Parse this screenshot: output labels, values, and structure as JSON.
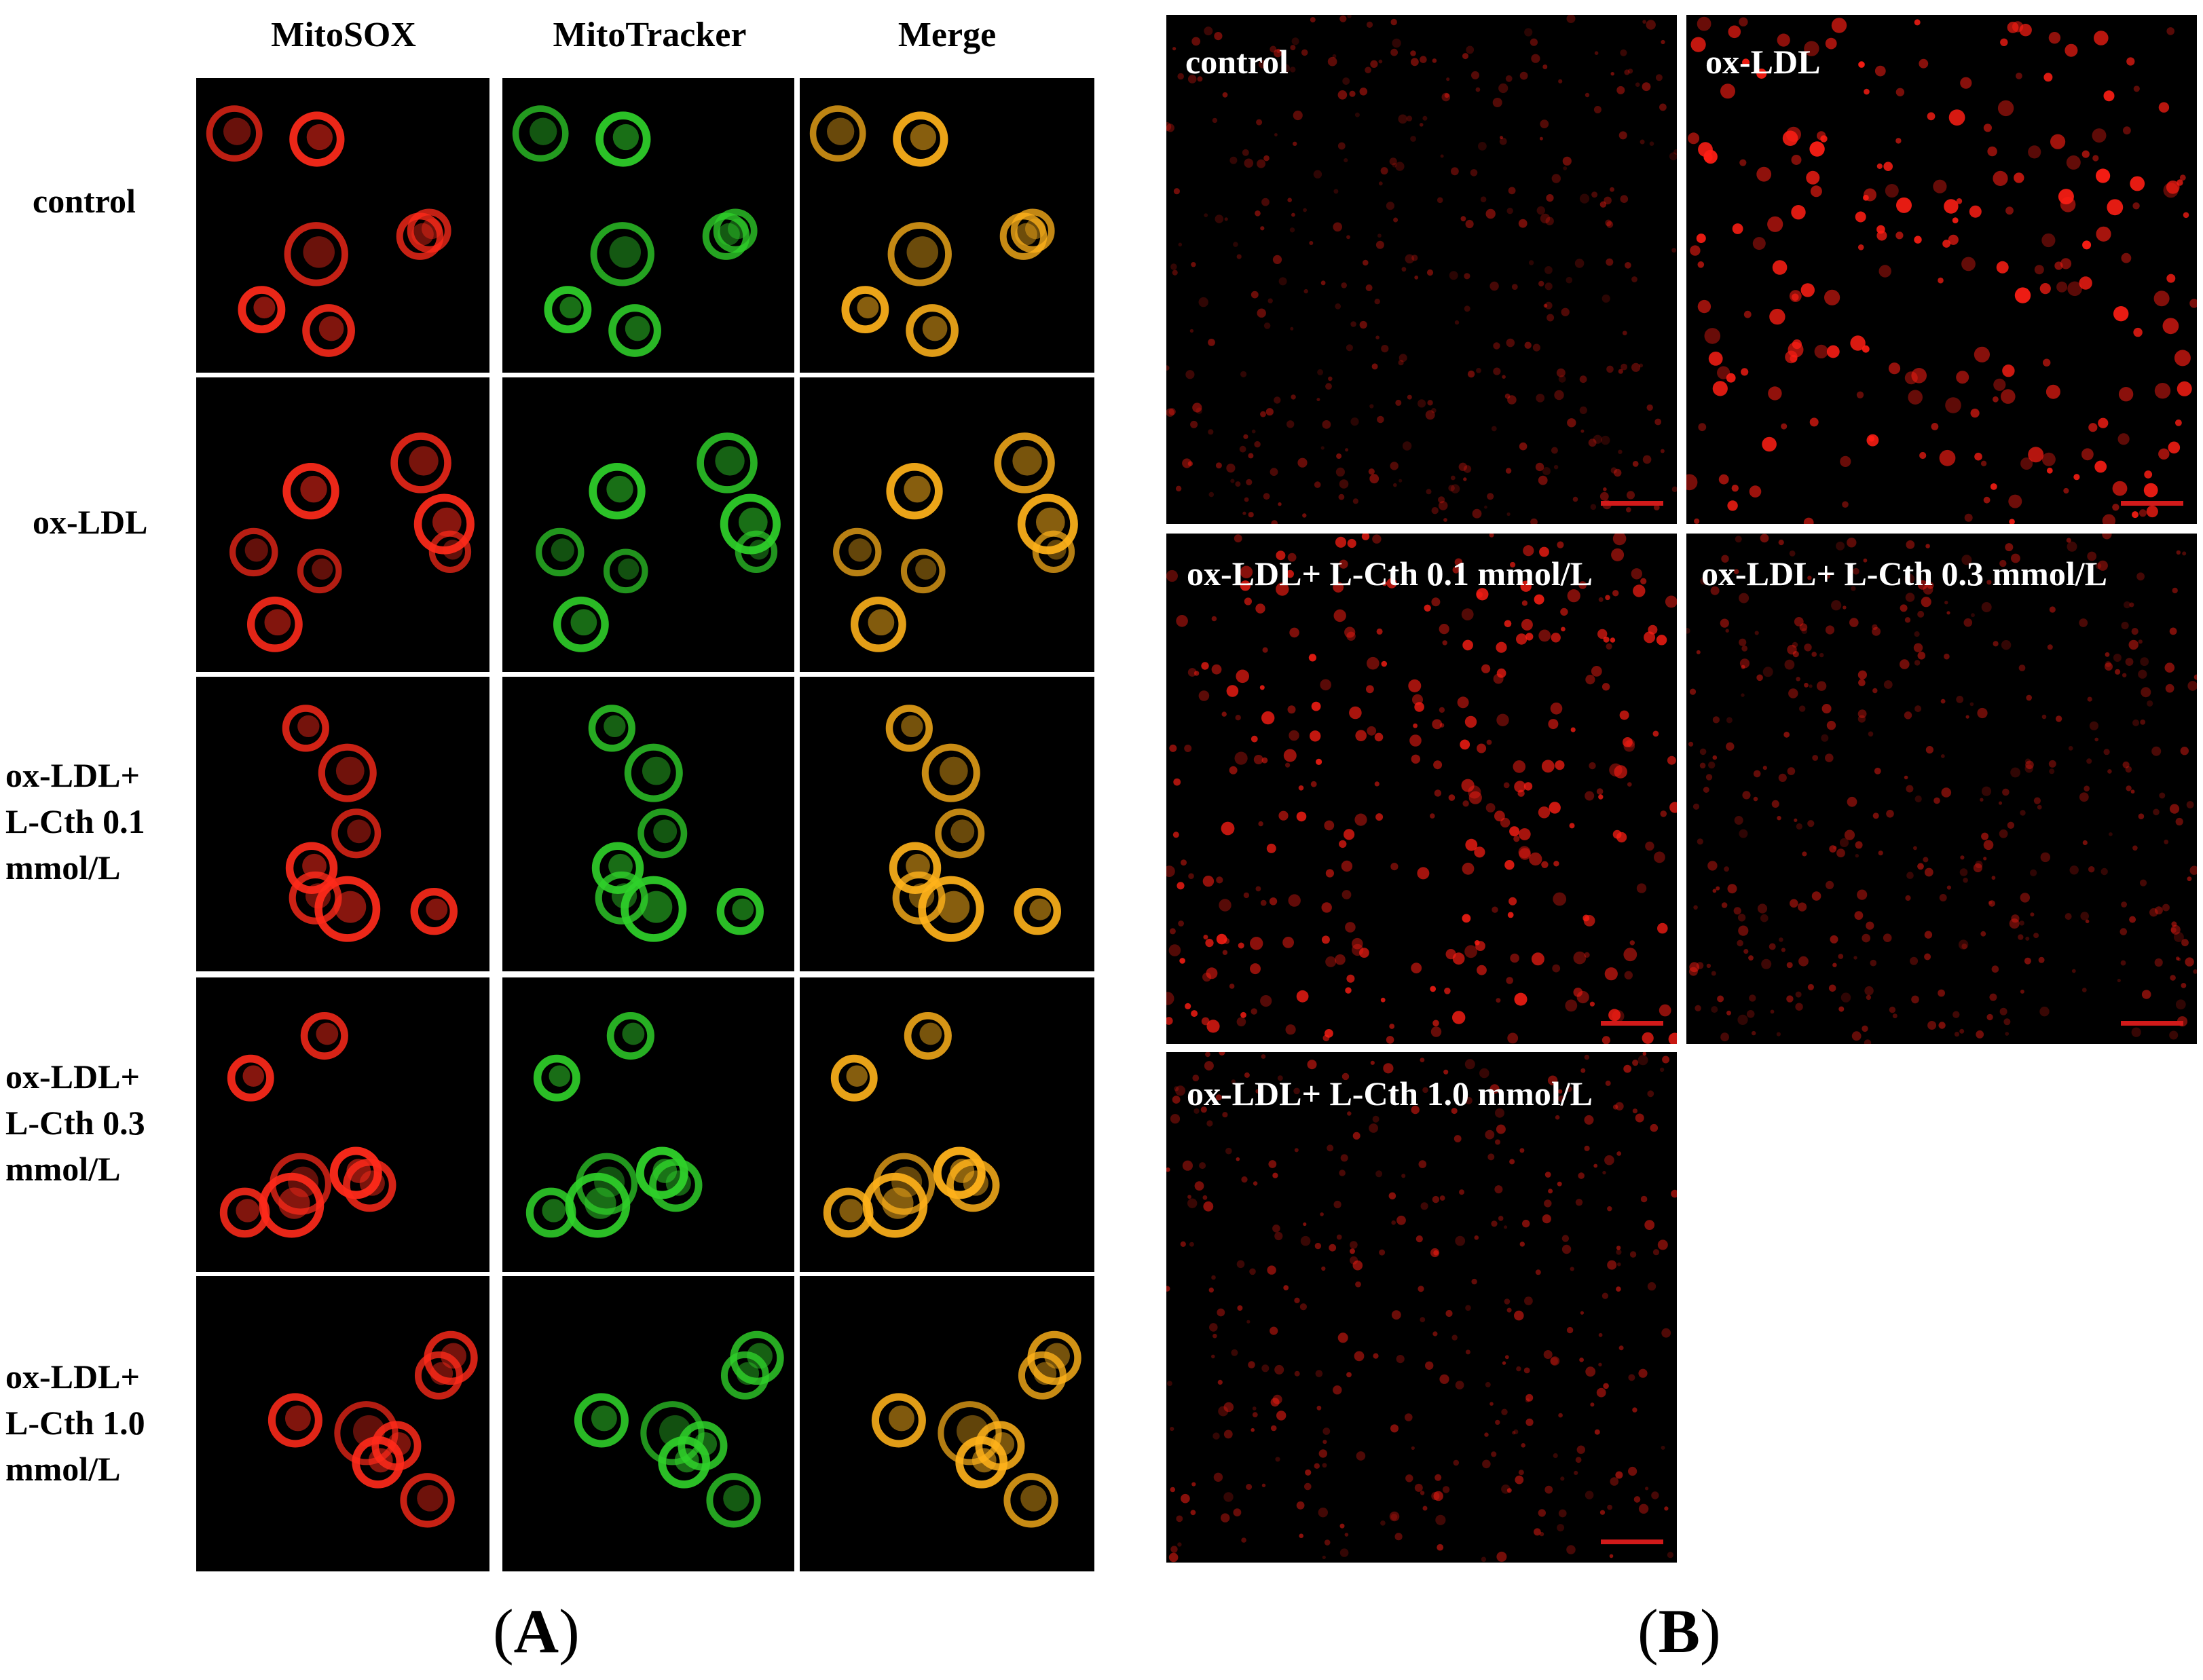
{
  "panel_a": {
    "column_headers": [
      "MitoSOX",
      "MitoTracker",
      "Merge"
    ],
    "rows": [
      {
        "lines": [
          "control"
        ]
      },
      {
        "lines": [
          "ox-LDL"
        ]
      },
      {
        "lines": [
          "ox-LDL+",
          "L-Cth 0.1",
          "mmol/L"
        ]
      },
      {
        "lines": [
          "ox-LDL+",
          "L-Cth 0.3",
          "mmol/L"
        ]
      },
      {
        "lines": [
          "ox-LDL+",
          "L-Cth 1.0",
          "mmol/L"
        ]
      }
    ],
    "letter": "A"
  },
  "panel_b": {
    "panels": [
      {
        "label": "control"
      },
      {
        "label": "ox-LDL"
      },
      {
        "label": "ox-LDL+ L-Cth 0.1 mmol/L"
      },
      {
        "label": "ox-LDL+ L-Cth 0.3 mmol/L"
      },
      {
        "label": "ox-LDL+ L-Cth 1.0 mmol/L"
      }
    ],
    "letter": "B"
  },
  "colors": {
    "mitosox": "#ff2a1a",
    "mitotracker": "#2fd12a",
    "merge": "#ffb21a",
    "background": "#000000",
    "scale_bar": "#d11a1a"
  }
}
